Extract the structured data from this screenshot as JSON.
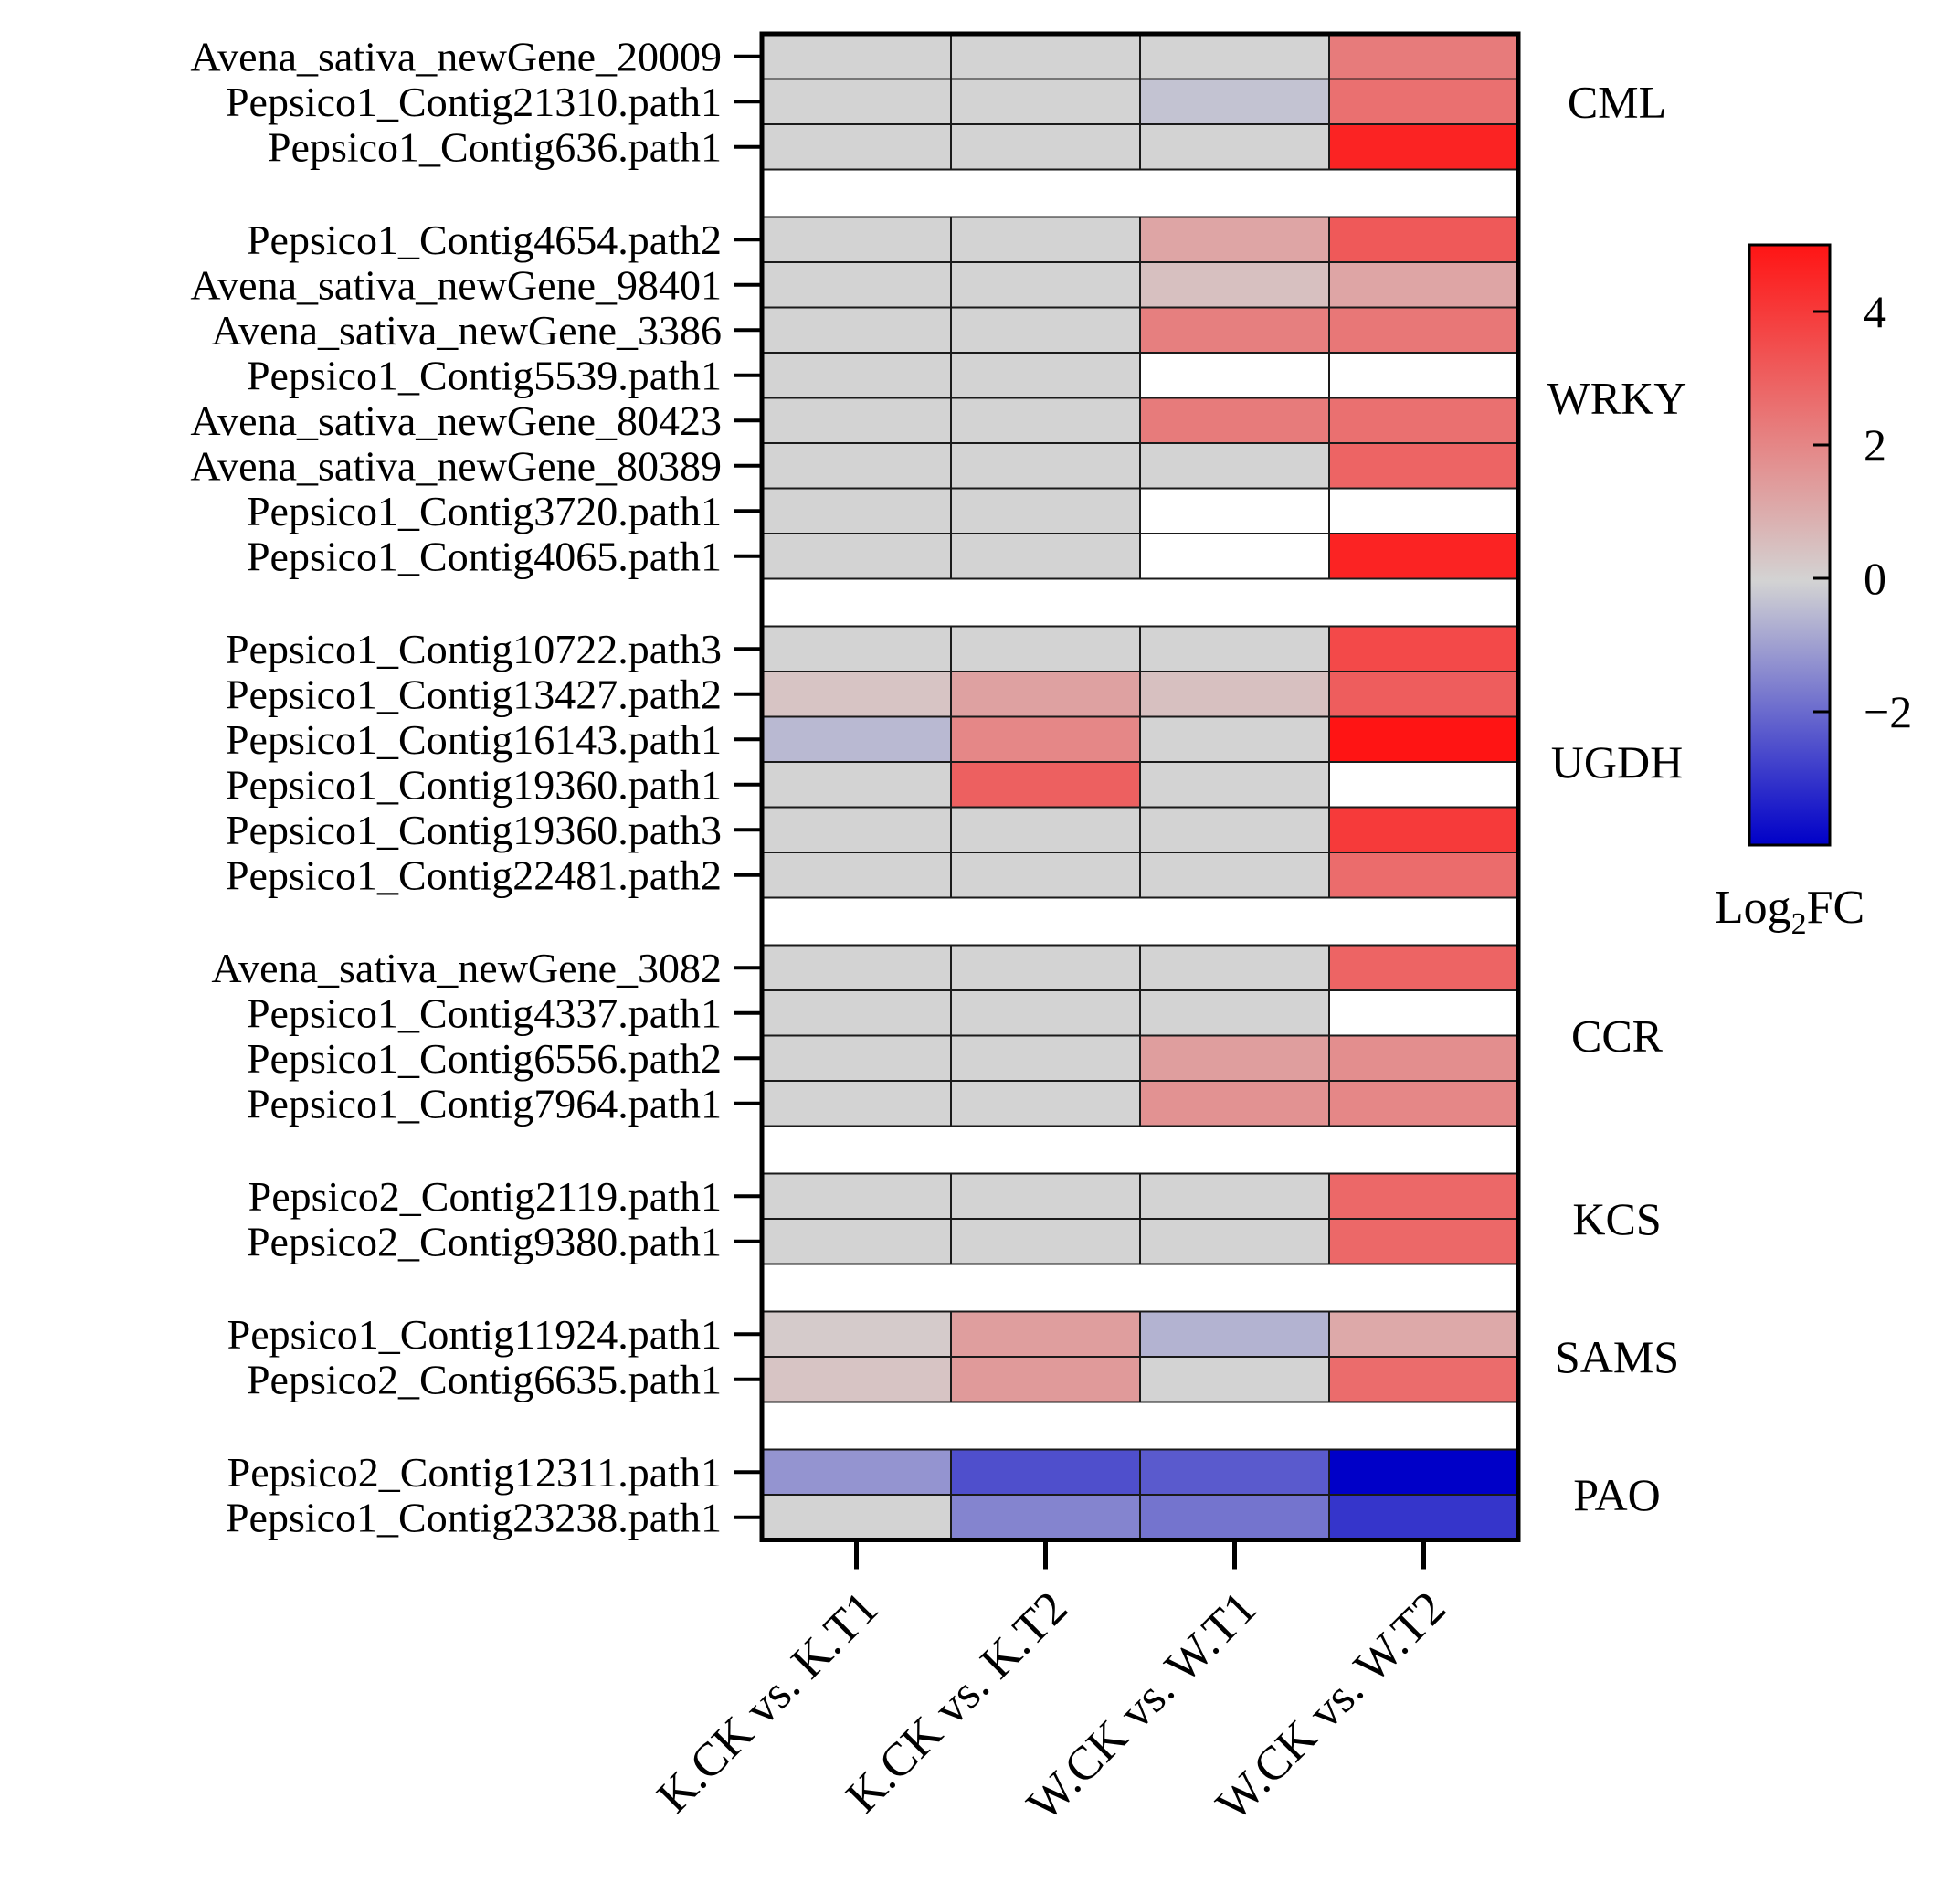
{
  "chart_data": {
    "type": "heatmap",
    "title": "",
    "columns": [
      "K.CK vs. K.T1",
      "K.CK vs. K.T2",
      "W.CK vs. W.T1",
      "W.CK vs. W.T2"
    ],
    "groups": [
      {
        "name": "CML",
        "rows": [
          {
            "gene": "Avena_sativa_newGene_20009",
            "values": [
              0,
              0,
              0,
              2.3
            ]
          },
          {
            "gene": "Pepsico1_Contig21310.path1",
            "values": [
              0,
              0,
              -0.3,
              2.6
            ]
          },
          {
            "gene": "Pepsico1_Contig636.path1",
            "values": [
              0,
              0,
              0,
              4.6
            ]
          }
        ]
      },
      {
        "name": "WRKY",
        "rows": [
          {
            "gene": "Pepsico1_Contig4654.path2",
            "values": [
              0,
              0,
              1.2,
              3.2
            ]
          },
          {
            "gene": "Avena_sativa_newGene_98401",
            "values": [
              0,
              0,
              0.5,
              1.2
            ]
          },
          {
            "gene": "Avena_sativa_newGene_3386",
            "values": [
              0,
              0,
              2.2,
              2.4
            ]
          },
          {
            "gene": "Pepsico1_Contig5539.path1",
            "values": [
              0,
              0,
              null,
              null
            ]
          },
          {
            "gene": "Avena_sativa_newGene_80423",
            "values": [
              0,
              0,
              2.3,
              2.6
            ]
          },
          {
            "gene": "Avena_sativa_newGene_80389",
            "values": [
              0,
              0,
              0,
              2.9
            ]
          },
          {
            "gene": "Pepsico1_Contig3720.path1",
            "values": [
              0,
              0,
              null,
              null
            ]
          },
          {
            "gene": "Pepsico1_Contig4065.path1",
            "values": [
              0,
              0,
              null,
              4.6
            ]
          }
        ]
      },
      {
        "name": "UGDH",
        "rows": [
          {
            "gene": "Pepsico1_Contig10722.path3",
            "values": [
              0,
              0,
              0,
              3.6
            ]
          },
          {
            "gene": "Pepsico1_Contig13427.path2",
            "values": [
              0.4,
              1.3,
              0.5,
              3.1
            ]
          },
          {
            "gene": "Pepsico1_Contig16143.path1",
            "values": [
              -0.5,
              2.0,
              0,
              5.0
            ]
          },
          {
            "gene": "Pepsico1_Contig19360.path1",
            "values": [
              0,
              3.0,
              0,
              null
            ]
          },
          {
            "gene": "Pepsico1_Contig19360.path3",
            "values": [
              0,
              0,
              0,
              4.0
            ]
          },
          {
            "gene": "Pepsico1_Contig22481.path2",
            "values": [
              0,
              0,
              0,
              2.7
            ]
          }
        ]
      },
      {
        "name": "CCR",
        "rows": [
          {
            "gene": "Avena_sativa_newGene_3082",
            "values": [
              0,
              0,
              0,
              2.9
            ]
          },
          {
            "gene": "Pepsico1_Contig4337.path1",
            "values": [
              0,
              0,
              0,
              null
            ]
          },
          {
            "gene": "Pepsico1_Contig6556.path2",
            "values": [
              0,
              0,
              1.4,
              1.8
            ]
          },
          {
            "gene": "Pepsico1_Contig7964.path1",
            "values": [
              0,
              0,
              1.7,
              2.0
            ]
          }
        ]
      },
      {
        "name": "KCS",
        "rows": [
          {
            "gene": "Pepsico2_Contig2119.path1",
            "values": [
              0,
              0,
              0,
              2.8
            ]
          },
          {
            "gene": "Pepsico2_Contig9380.path1",
            "values": [
              0,
              0,
              0,
              2.8
            ]
          }
        ]
      },
      {
        "name": "SAMS",
        "rows": [
          {
            "gene": "Pepsico1_Contig11924.path1",
            "values": [
              0.2,
              1.4,
              -0.6,
              1.1
            ]
          },
          {
            "gene": "Pepsico2_Contig6635.path1",
            "values": [
              0.4,
              1.5,
              0,
              2.7
            ]
          }
        ]
      },
      {
        "name": "PAO",
        "rows": [
          {
            "gene": "Pepsico2_Contig12311.path1",
            "values": [
              -1.2,
              -2.5,
              -2.3,
              -4.0
            ]
          },
          {
            "gene": "Pepsico1_Contig23238.path1",
            "values": [
              0,
              -1.5,
              -1.8,
              -3.0
            ]
          }
        ]
      }
    ],
    "colorbar": {
      "title_main": "Log",
      "title_sub": "2",
      "title_suffix": "FC",
      "range": [
        -4,
        5
      ],
      "ticks": [
        -2,
        0,
        2,
        4
      ],
      "tick_labels": [
        "−2",
        "0",
        "2",
        "4"
      ],
      "colors": {
        "low": "#0000c8",
        "mid": "#d3d3d3",
        "high": "#ff1414",
        "missing": "#ffffff"
      }
    }
  }
}
